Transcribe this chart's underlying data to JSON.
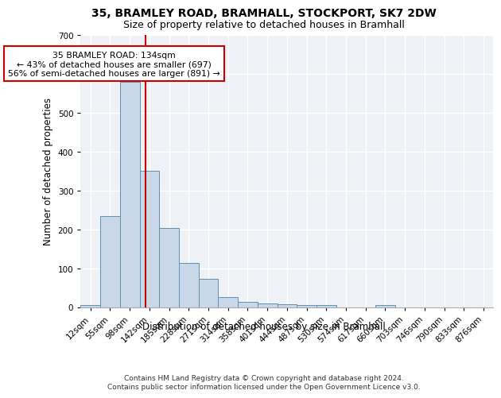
{
  "title1": "35, BRAMLEY ROAD, BRAMHALL, STOCKPORT, SK7 2DW",
  "title2": "Size of property relative to detached houses in Bramhall",
  "xlabel": "Distribution of detached houses by size in Bramhall",
  "ylabel": "Number of detached properties",
  "footer": "Contains HM Land Registry data © Crown copyright and database right 2024.\nContains public sector information licensed under the Open Government Licence v3.0.",
  "bin_labels": [
    "12sqm",
    "55sqm",
    "98sqm",
    "142sqm",
    "185sqm",
    "228sqm",
    "271sqm",
    "314sqm",
    "358sqm",
    "401sqm",
    "444sqm",
    "487sqm",
    "530sqm",
    "574sqm",
    "617sqm",
    "660sqm",
    "703sqm",
    "746sqm",
    "790sqm",
    "833sqm",
    "876sqm"
  ],
  "bar_values": [
    5,
    235,
    580,
    350,
    203,
    113,
    72,
    25,
    13,
    10,
    7,
    5,
    5,
    0,
    0,
    5,
    0,
    0,
    0,
    0,
    0
  ],
  "bar_color": "#c8d8e8",
  "bar_edge_color": "#6090b0",
  "vline_x_idx": 2.82,
  "vline_color": "#cc0000",
  "annotation_text": "35 BRAMLEY ROAD: 134sqm\n← 43% of detached houses are smaller (697)\n56% of semi-detached houses are larger (891) →",
  "annotation_box_color": "#ffffff",
  "annotation_box_edge": "#cc0000",
  "ylim": [
    0,
    700
  ],
  "yticks": [
    0,
    100,
    200,
    300,
    400,
    500,
    600,
    700
  ],
  "bg_color": "#eef2f6",
  "title1_fontsize": 10,
  "title2_fontsize": 9,
  "axis_label_fontsize": 8.5,
  "tick_fontsize": 7.5,
  "footer_fontsize": 6.5
}
